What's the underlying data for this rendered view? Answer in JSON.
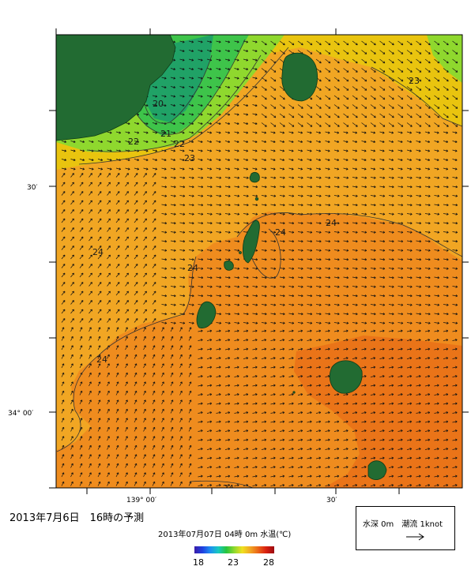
{
  "map": {
    "lat_labels": [
      "30′",
      "34° 00′"
    ],
    "lon_labels": [
      "139° 00′",
      "30′"
    ],
    "contour_labels": [
      "20",
      "21",
      "22",
      "22",
      "23",
      "23",
      "24",
      "24",
      "24",
      "24",
      "24",
      "24"
    ],
    "colors": {
      "land": "#226b32",
      "temp_20": "#20a266",
      "temp_21": "#3ec44a",
      "temp_22": "#8fd82e",
      "temp_23": "#e9c40f",
      "temp_24": "#f1a623",
      "temp_25": "#ef8c1e",
      "temp_warm": "#ea7418",
      "vector": "#111111"
    }
  },
  "title": "2013年7月6日　16時の予測",
  "caption": "2013年07月07日 04時 0m 水温(℃)",
  "legend": {
    "label": "水深 0m　潮流 1knot",
    "arrow_icon": "arrow-right-icon"
  },
  "colorbar": {
    "min_label": "18",
    "mid_label": "23",
    "max_label": "28",
    "min": 18,
    "max": 28
  }
}
